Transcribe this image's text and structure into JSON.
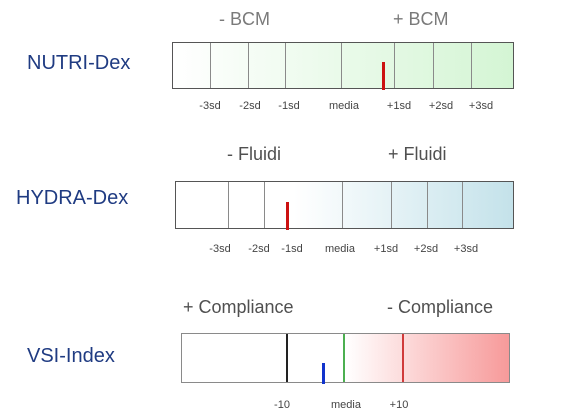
{
  "nutri": {
    "label": "NUTRI-Dex",
    "minus_heading": "- BCM",
    "plus_heading": "+ BCM",
    "ticks": [
      "-3sd",
      "-2sd",
      "-1sd",
      "media",
      "+1sd",
      "+2sd",
      "+3sd"
    ],
    "marker_value_sd": 0.8,
    "marker_color": "#cc1111",
    "gradient_colors": [
      "#ffffff",
      "#d4f5d4"
    ]
  },
  "hydra": {
    "label": "HYDRA-Dex",
    "minus_heading": "- Fluidi",
    "plus_heading": "+ Fluidi",
    "ticks": [
      "-3sd",
      "-2sd",
      "-1sd",
      "media",
      "+1sd",
      "+2sd",
      "+3sd"
    ],
    "marker_value_sd": -1.15,
    "marker_color": "#cc1111",
    "gradient_colors": [
      "#ffffff",
      "#c4e2ea"
    ]
  },
  "vsi": {
    "label": "VSI-Index",
    "plus_heading": "+ Compliance",
    "minus_heading": "- Compliance",
    "ticks": [
      "-10",
      "media",
      "+10"
    ],
    "marker_value": -3.6,
    "marker_color": "#1133cc",
    "line_colors": {
      "low": "#222222",
      "mid": "#4caf50",
      "high": "#d03a3a"
    },
    "gradient_colors": [
      "#ffffff",
      "#f79a9a"
    ]
  }
}
